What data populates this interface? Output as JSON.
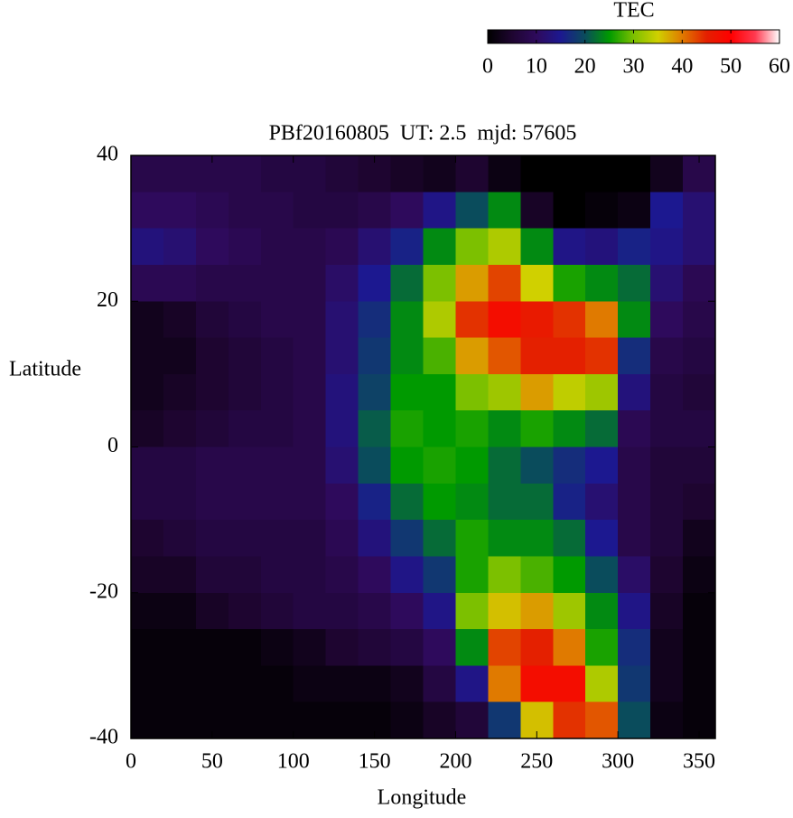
{
  "chart_data": {
    "type": "heatmap",
    "title": "PBf20160805  UT: 2.5  mjd: 57605",
    "xlabel": "Longitude",
    "ylabel": "Latitude",
    "colorbar_label": "TEC",
    "x": [
      10,
      30,
      50,
      70,
      90,
      110,
      130,
      150,
      170,
      190,
      210,
      230,
      250,
      270,
      290,
      310,
      330,
      350
    ],
    "y": [
      37.5,
      32.5,
      27.5,
      22.5,
      17.5,
      12.5,
      7.5,
      2.5,
      -2.5,
      -7.5,
      -12.5,
      -17.5,
      -22.5,
      -27.5,
      -32.5,
      -37.5
    ],
    "z": [
      [
        8,
        8,
        8,
        8,
        7,
        7,
        6,
        5,
        4,
        3,
        5,
        2,
        0,
        0,
        0,
        0,
        3,
        8
      ],
      [
        10,
        10,
        9,
        8,
        8,
        7,
        7,
        8,
        10,
        14,
        20,
        24,
        4,
        0,
        1,
        2,
        15,
        12
      ],
      [
        13,
        12,
        10,
        9,
        8,
        8,
        9,
        12,
        16,
        24,
        30,
        33,
        24,
        14,
        13,
        16,
        14,
        12
      ],
      [
        9,
        9,
        8,
        8,
        8,
        8,
        11,
        15,
        22,
        30,
        38,
        43,
        35,
        26,
        24,
        22,
        12,
        9
      ],
      [
        3,
        4,
        6,
        7,
        8,
        8,
        12,
        17,
        24,
        33,
        44,
        48,
        46,
        44,
        40,
        24,
        10,
        8
      ],
      [
        3,
        3,
        5,
        6,
        7,
        8,
        12,
        18,
        24,
        28,
        38,
        42,
        45,
        45,
        44,
        17,
        8,
        7
      ],
      [
        3,
        4,
        5,
        6,
        7,
        8,
        13,
        19,
        25,
        25,
        30,
        32,
        38,
        34,
        32,
        13,
        7,
        6
      ],
      [
        4,
        5,
        6,
        7,
        7,
        8,
        13,
        21,
        26,
        25,
        26,
        24,
        26,
        24,
        22,
        9,
        7,
        7
      ],
      [
        7,
        7,
        8,
        8,
        8,
        8,
        12,
        20,
        25,
        26,
        25,
        22,
        20,
        17,
        15,
        8,
        6,
        6
      ],
      [
        7,
        7,
        8,
        8,
        8,
        8,
        10,
        16,
        22,
        25,
        24,
        22,
        22,
        16,
        12,
        8,
        6,
        5
      ],
      [
        5,
        6,
        7,
        7,
        7,
        7,
        9,
        13,
        18,
        22,
        26,
        24,
        24,
        22,
        15,
        8,
        6,
        3
      ],
      [
        4,
        4,
        6,
        6,
        7,
        7,
        8,
        10,
        14,
        18,
        26,
        30,
        28,
        25,
        20,
        11,
        5,
        2
      ],
      [
        2,
        2,
        4,
        5,
        6,
        7,
        7,
        8,
        10,
        14,
        30,
        36,
        38,
        32,
        24,
        14,
        4,
        1
      ],
      [
        1,
        1,
        1,
        1,
        2,
        3,
        5,
        6,
        7,
        10,
        24,
        43,
        45,
        40,
        26,
        17,
        3,
        1
      ],
      [
        1,
        1,
        1,
        1,
        1,
        2,
        2,
        2,
        3,
        7,
        14,
        40,
        48,
        48,
        33,
        18,
        3,
        1
      ],
      [
        1,
        1,
        1,
        1,
        1,
        1,
        1,
        1,
        2,
        4,
        6,
        18,
        36,
        44,
        42,
        20,
        2,
        1
      ]
    ],
    "xlim": [
      0,
      360
    ],
    "xticks": [
      0,
      50,
      100,
      150,
      200,
      250,
      300,
      350
    ],
    "ylim": [
      -40,
      40
    ],
    "yticks": [
      -40,
      -20,
      0,
      20,
      40
    ],
    "zlim": [
      0,
      60
    ],
    "zticks": [
      0,
      10,
      20,
      30,
      40,
      50,
      60
    ],
    "colorscale": [
      "#000000",
      "#1e0530",
      "#2e0a5c",
      "#1c1890",
      "#0a4c5c",
      "#009a00",
      "#7cc000",
      "#d0d000",
      "#e07a00",
      "#e42000",
      "#ff0000",
      "#ff3a50",
      "#ffffff"
    ]
  }
}
